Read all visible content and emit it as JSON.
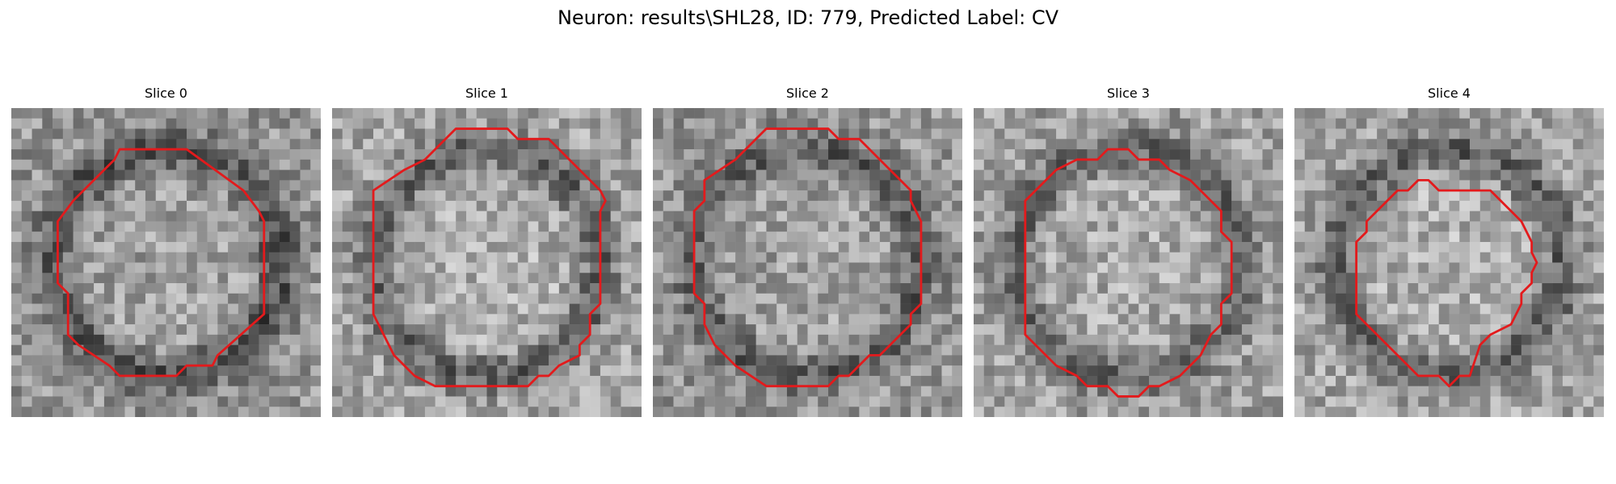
{
  "figure": {
    "title": "Neuron: results\\SHL28, ID: 779, Predicted Label: CV"
  },
  "panels": [
    {
      "title": "Slice 0",
      "seed": 11,
      "bg_mean": 150,
      "ring_strength": 70,
      "contour": "#e31a1c"
    },
    {
      "title": "Slice 1",
      "seed": 23,
      "bg_mean": 165,
      "ring_strength": 65,
      "contour": "#e31a1c"
    },
    {
      "title": "Slice 2",
      "seed": 37,
      "bg_mean": 150,
      "ring_strength": 55,
      "contour": "#e31a1c"
    },
    {
      "title": "Slice 3",
      "seed": 41,
      "bg_mean": 160,
      "ring_strength": 60,
      "contour": "#e31a1c"
    },
    {
      "title": "Slice 4",
      "seed": 53,
      "bg_mean": 165,
      "ring_strength": 70,
      "contour": "#e31a1c"
    }
  ]
}
